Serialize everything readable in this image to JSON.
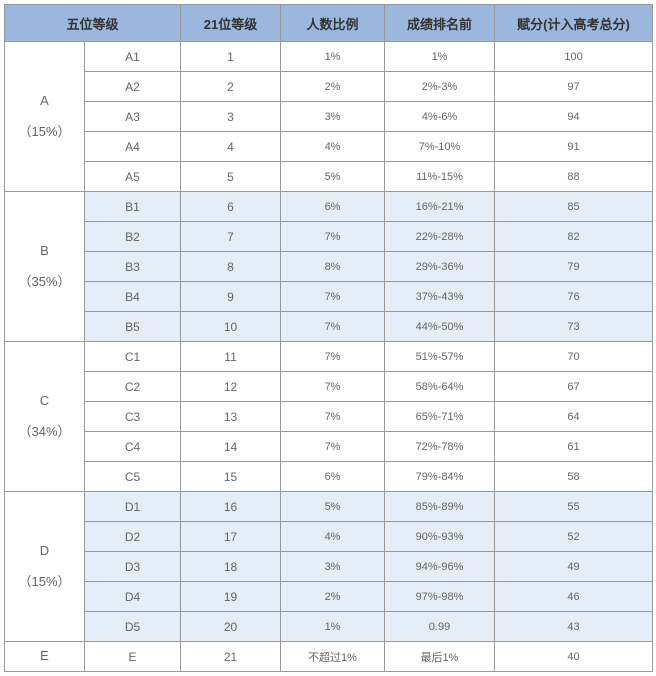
{
  "headers": [
    "五位等级",
    "21位等级",
    "人数比例",
    "成绩排名前",
    "赋分(计入高考总分)"
  ],
  "groups": [
    {
      "label": "A",
      "pct": "（15%）",
      "rows": [
        {
          "sub": "A1",
          "n": "1",
          "p": "1%",
          "r": "1%",
          "s": "100"
        },
        {
          "sub": "A2",
          "n": "2",
          "p": "2%",
          "r": "2%-3%",
          "s": "97"
        },
        {
          "sub": "A3",
          "n": "3",
          "p": "3%",
          "r": "4%-6%",
          "s": "94"
        },
        {
          "sub": "A4",
          "n": "4",
          "p": "4%",
          "r": "7%-10%",
          "s": "91"
        },
        {
          "sub": "A5",
          "n": "5",
          "p": "5%",
          "r": "11%-15%",
          "s": "88"
        }
      ]
    },
    {
      "label": "B",
      "pct": "（35%）",
      "rows": [
        {
          "sub": "B1",
          "n": "6",
          "p": "6%",
          "r": "16%-21%",
          "s": "85"
        },
        {
          "sub": "B2",
          "n": "7",
          "p": "7%",
          "r": "22%-28%",
          "s": "82"
        },
        {
          "sub": "B3",
          "n": "8",
          "p": "8%",
          "r": "29%-36%",
          "s": "79"
        },
        {
          "sub": "B4",
          "n": "9",
          "p": "7%",
          "r": "37%-43%",
          "s": "76"
        },
        {
          "sub": "B5",
          "n": "10",
          "p": "7%",
          "r": "44%-50%",
          "s": "73"
        }
      ]
    },
    {
      "label": "C",
      "pct": "（34%）",
      "rows": [
        {
          "sub": "C1",
          "n": "11",
          "p": "7%",
          "r": "51%-57%",
          "s": "70"
        },
        {
          "sub": "C2",
          "n": "12",
          "p": "7%",
          "r": "58%-64%",
          "s": "67"
        },
        {
          "sub": "C3",
          "n": "13",
          "p": "7%",
          "r": "65%-71%",
          "s": "64"
        },
        {
          "sub": "C4",
          "n": "14",
          "p": "7%",
          "r": "72%-78%",
          "s": "61"
        },
        {
          "sub": "C5",
          "n": "15",
          "p": "6%",
          "r": "79%-84%",
          "s": "58"
        }
      ]
    },
    {
      "label": "D",
      "pct": "（15%）",
      "rows": [
        {
          "sub": "D1",
          "n": "16",
          "p": "5%",
          "r": "85%-89%",
          "s": "55"
        },
        {
          "sub": "D2",
          "n": "17",
          "p": "4%",
          "r": "90%-93%",
          "s": "52"
        },
        {
          "sub": "D3",
          "n": "18",
          "p": "3%",
          "r": "94%-96%",
          "s": "49"
        },
        {
          "sub": "D4",
          "n": "19",
          "p": "2%",
          "r": "97%-98%",
          "s": "46"
        },
        {
          "sub": "D5",
          "n": "20",
          "p": "1%",
          "r": "0.99",
          "s": "43"
        }
      ]
    },
    {
      "label": "E",
      "pct": "",
      "rows": [
        {
          "sub": "E",
          "n": "21",
          "p": "不超过1%",
          "r": "最后1%",
          "s": "40"
        }
      ]
    }
  ],
  "colors": {
    "header_bg": "#9cb7dd",
    "alt_bg": "#e5edf6",
    "border": "#999999",
    "text": "#666666"
  }
}
